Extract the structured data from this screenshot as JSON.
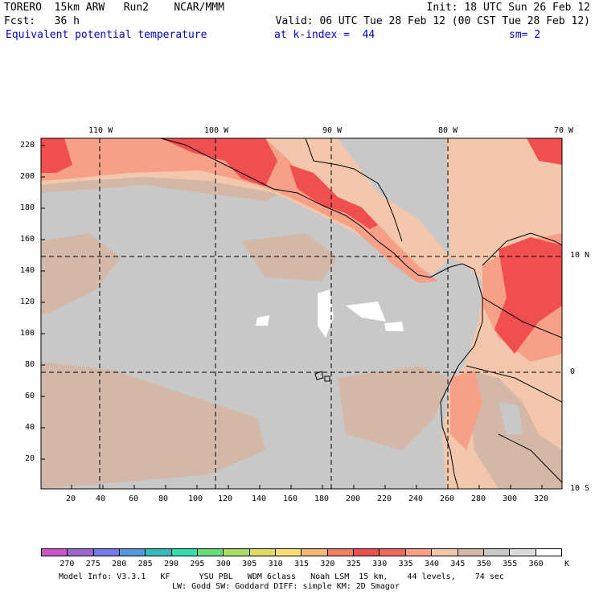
{
  "header": {
    "line1_left": "TORERO  15km ARW   Run2    NCAR/MMM",
    "line1_right": "Init: 18 UTC Sun 26 Feb 12",
    "line2_left": "Fcst:   36 h",
    "line2_right": "Valid: 06 UTC Tue 28 Feb 12 (00 CST Tue 28 Feb 12)",
    "field": "Equivalent potential temperature",
    "level": "at k-index =  44",
    "smooth": "sm= 2"
  },
  "axes": {
    "top_lon": [
      "110 W",
      "100 W",
      "90 W",
      "80 W",
      "70 W"
    ],
    "right_lat": [
      "10 N",
      "0",
      "10 S"
    ],
    "left_ticks": [
      "220",
      "200",
      "180",
      "160",
      "140",
      "120",
      "100",
      "80",
      "60",
      "40",
      "20"
    ],
    "bottom_ticks": [
      "20",
      "40",
      "60",
      "80",
      "100",
      "120",
      "140",
      "160",
      "180",
      "200",
      "220",
      "240",
      "260",
      "280",
      "300",
      "320"
    ]
  },
  "colorbar": {
    "unit": "K",
    "labels": [
      "270",
      "275",
      "280",
      "285",
      "290",
      "295",
      "300",
      "305",
      "310",
      "315",
      "320",
      "325",
      "330",
      "335",
      "340",
      "345",
      "350",
      "355",
      "360"
    ],
    "colors": [
      "#cc55cc",
      "#9966cc",
      "#7777ee",
      "#5599dd",
      "#33bbbb",
      "#33ddaa",
      "#66dd77",
      "#aadd66",
      "#dddd66",
      "#ffdd77",
      "#f5b870",
      "#f58060",
      "#ef4f4f",
      "#f26a5a",
      "#f6a088",
      "#f3c7ac",
      "#d3b8a7",
      "#c8c8c8",
      "#dcdcdc",
      "#ffffff"
    ]
  },
  "map_colors": {
    "ocean": "#c8c8c8",
    "tan": "#d3b8a7",
    "peach": "#f3c7ac",
    "salmon": "#f6a088",
    "red": "#ef4f4f",
    "white": "#ffffff"
  },
  "footer": {
    "line1": "Model Info: V3.3.1   KF      YSU PBL   WDM 6class   Noah LSM  15 km,    44 levels,    74 sec",
    "line2": "LW: Godd SW: Goddard DIFF: simple KM: 2D Smagor"
  }
}
